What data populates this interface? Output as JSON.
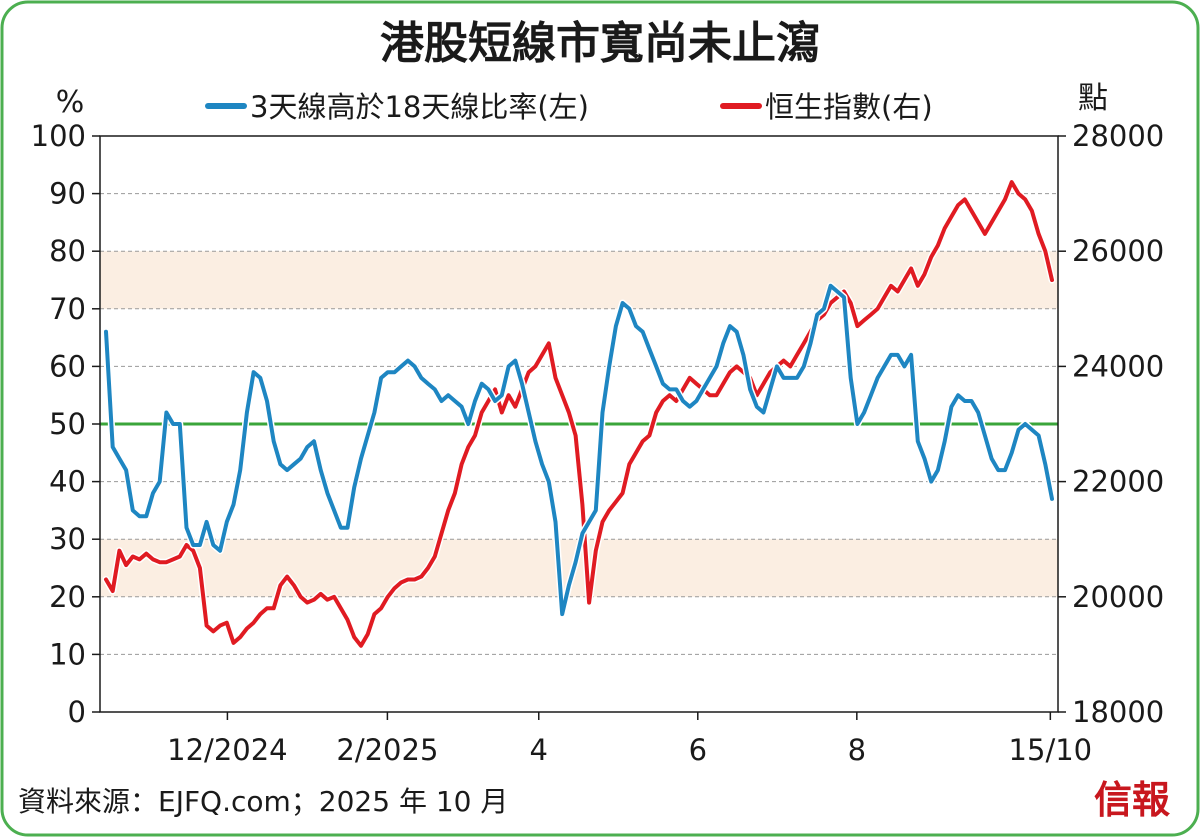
{
  "chart_data": {
    "type": "line",
    "title": "港股短線市寬尚未止瀉",
    "left_unit": "%",
    "right_unit": "點",
    "y_left_range": [
      0,
      100
    ],
    "y_left_ticks": [
      "0",
      "10",
      "20",
      "30",
      "40",
      "50",
      "60",
      "70",
      "80",
      "90",
      "100"
    ],
    "y_right_range": [
      18000,
      28000
    ],
    "y_right_ticks": [
      "18000",
      "20000",
      "22000",
      "24000",
      "26000",
      "28000"
    ],
    "x_tick_labels": [
      "12/2024",
      "2/2025",
      "4",
      "6",
      "8",
      "15/10"
    ],
    "reference_line": 50,
    "shaded_bands": [
      [
        20,
        30
      ],
      [
        70,
        80
      ]
    ],
    "grid": "horizontal dashed",
    "legend_position": "top",
    "colors": {
      "breadth": "#1e86c2",
      "hsi": "#e01b22",
      "reference": "#3aa53a",
      "band": "#fbeee2",
      "frame": "#4caf50"
    },
    "series": [
      {
        "name": "3天線高於18天線比率(左)",
        "axis": "left",
        "values": [
          66,
          46,
          44,
          42,
          35,
          34,
          34,
          38,
          40,
          52,
          50,
          50,
          32,
          29,
          29,
          33,
          29,
          28,
          33,
          36,
          42,
          52,
          59,
          58,
          54,
          47,
          43,
          42,
          43,
          44,
          46,
          47,
          42,
          38,
          35,
          32,
          32,
          39,
          44,
          48,
          52,
          58,
          59,
          59,
          60,
          61,
          60,
          58,
          57,
          56,
          54,
          55,
          54,
          53,
          50,
          54,
          57,
          56,
          54,
          55,
          60,
          61,
          57,
          52,
          47,
          43,
          40,
          33,
          17,
          22,
          26,
          31,
          33,
          35,
          52,
          60,
          67,
          71,
          70,
          67,
          66,
          63,
          60,
          57,
          56,
          56,
          54,
          53,
          54,
          56,
          58,
          60,
          64,
          67,
          66,
          62,
          56,
          53,
          52,
          56,
          60,
          58,
          58,
          58,
          60,
          64,
          69,
          70,
          74,
          73,
          72,
          58,
          50,
          52,
          55,
          58,
          60,
          62,
          62,
          60,
          62,
          47,
          44,
          40,
          42,
          47,
          53,
          55,
          54,
          54,
          52,
          48,
          44,
          42,
          42,
          45,
          49,
          50,
          49,
          48,
          43,
          37
        ]
      },
      {
        "name": "恒生指數(右)",
        "axis": "right",
        "values": [
          20300,
          20100,
          20800,
          20550,
          20700,
          20650,
          20750,
          20650,
          20600,
          20600,
          20650,
          20700,
          20900,
          20800,
          20500,
          19500,
          19400,
          19500,
          19550,
          19200,
          19300,
          19450,
          19550,
          19700,
          19800,
          19800,
          20200,
          20350,
          20200,
          20000,
          19900,
          19950,
          20050,
          19950,
          20000,
          19800,
          19600,
          19300,
          19150,
          19350,
          19700,
          19800,
          20000,
          20150,
          20250,
          20300,
          20300,
          20350,
          20500,
          20700,
          21100,
          21500,
          21800,
          22300,
          22600,
          22800,
          23200,
          23400,
          23600,
          23200,
          23500,
          23300,
          23600,
          23900,
          24000,
          24200,
          24400,
          23800,
          23500,
          23200,
          22800,
          21600,
          19900,
          20800,
          21300,
          21500,
          21650,
          21800,
          22300,
          22500,
          22700,
          22800,
          23200,
          23400,
          23500,
          23400,
          23600,
          23800,
          23700,
          23600,
          23500,
          23500,
          23700,
          23900,
          24000,
          23900,
          23800,
          23500,
          23700,
          23900,
          24000,
          24100,
          24000,
          24200,
          24400,
          24600,
          24800,
          24900,
          25100,
          25200,
          25300,
          25100,
          24700,
          24800,
          24900,
          25000,
          25200,
          25400,
          25300,
          25500,
          25700,
          25400,
          25600,
          25900,
          26100,
          26400,
          26600,
          26800,
          26900,
          26700,
          26500,
          26300,
          26500,
          26700,
          26900,
          27200,
          27000,
          26900,
          26700,
          26300,
          26000,
          25500
        ]
      }
    ]
  },
  "footer": {
    "source": "資料來源：EJFQ.com；2025 年 10 月",
    "logo_text": "信報"
  }
}
